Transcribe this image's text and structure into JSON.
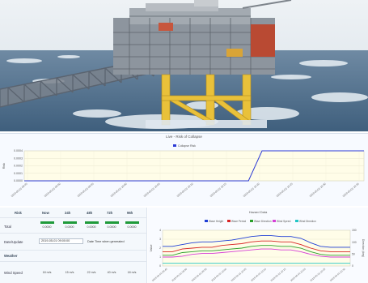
{
  "chart_data": [
    {
      "type": "line",
      "title": "Live - Risk of Collapse",
      "series": [
        {
          "name": "Collapse Risk",
          "color": "#2d3bd6",
          "x": [
            0,
            6.6,
            7.0,
            10
          ],
          "values": [
            0,
            0,
            0.0004,
            0.0004
          ]
        }
      ],
      "y_ticks": [
        "0.0004",
        "0.0003",
        "0.0002",
        "0.0001",
        "0.0000"
      ],
      "ylim": [
        0,
        0.0004
      ],
      "ylabel": "Risk",
      "x_ticks": [
        "2019-05-01 09:45",
        "2019-05-01 09:50",
        "2019-05-01 09:55",
        "2019-05-01 10:00",
        "2019-05-01 10:05",
        "2019-05-01 10:10",
        "2019-05-01 10:15",
        "2019-05-01 10:20",
        "2019-05-01 10:25",
        "2019-05-01 10:30",
        "2019-05-01 10:35"
      ],
      "grid": true
    },
    {
      "type": "line",
      "title": "Hazard Data",
      "series": [
        {
          "name": "Wave Height",
          "color": "#1f3fd6",
          "values": [
            2.2,
            2.2,
            2.4,
            2.6,
            2.7,
            2.7,
            2.8,
            2.9,
            3.1,
            3.3,
            3.4,
            3.4,
            3.3,
            3.3,
            3.1,
            2.6,
            2.2,
            2.1,
            2.1,
            2.1
          ]
        },
        {
          "name": "Wave Period",
          "color": "#d82424",
          "values": [
            1.6,
            1.6,
            1.9,
            2.0,
            2.1,
            2.1,
            2.3,
            2.4,
            2.5,
            2.7,
            2.8,
            2.8,
            2.7,
            2.7,
            2.4,
            2.0,
            1.7,
            1.6,
            1.6,
            1.6
          ]
        },
        {
          "name": "Wave Direction",
          "color": "#2aa02a",
          "values": [
            1.2,
            1.2,
            1.5,
            1.6,
            1.7,
            1.7,
            1.8,
            1.9,
            2.0,
            2.2,
            2.3,
            2.3,
            2.2,
            2.2,
            2.0,
            1.6,
            1.3,
            1.2,
            1.2,
            1.2
          ]
        },
        {
          "name": "Wind Speed",
          "color": "#d63fd6",
          "values": [
            1.0,
            1.0,
            1.1,
            1.3,
            1.4,
            1.4,
            1.5,
            1.6,
            1.7,
            1.8,
            1.9,
            1.9,
            1.8,
            1.8,
            1.6,
            1.3,
            1.1,
            1.0,
            1.0,
            1.0
          ]
        },
        {
          "name": "Wind Direction",
          "color": "#22c6c6",
          "values": [
            0.3,
            0.3,
            0.3,
            0.3,
            0.3,
            0.3,
            0.3,
            0.3,
            0.3,
            0.3,
            0.3,
            0.3,
            0.3,
            0.3,
            0.3,
            0.3,
            0.3,
            0.3,
            0.3,
            0.3
          ]
        }
      ],
      "y_ticks": [
        "4",
        "3",
        "2",
        "1",
        "0"
      ],
      "ylim": [
        0,
        4
      ],
      "y2_ticks": [
        "150",
        "100",
        "50",
        "0"
      ],
      "ylabel": "Value",
      "y2label": "Direction (deg)",
      "x_ticks": [
        "2019-05-01 09:45",
        "2019-05-01 09:50",
        "2019-05-01 09:55",
        "2019-05-01 10:00",
        "2019-05-01 10:05",
        "2019-05-01 10:10",
        "2019-05-01 10:15",
        "2019-05-01 10:20",
        "2019-05-01 10:25",
        "2019-05-01 10:30"
      ],
      "grid": true
    }
  ],
  "risk_table": {
    "headers": [
      "Risk",
      "Now",
      "24h",
      "48h",
      "72h",
      "96h"
    ],
    "total_label": "Total",
    "total_values": [
      "0.0000",
      "0.0000",
      "0.0000",
      "0.0000",
      "0.0000"
    ],
    "date_label": "Date/Update",
    "date_value": "2019-05-01 09:00:00",
    "date_note": "Date Time when generated",
    "weather_label": "Weather",
    "wind_label": "Wind Speed",
    "wind_values": [
      "18 m/s",
      "15 m/s",
      "22 m/s",
      "40 m/s",
      "18 m/s"
    ]
  },
  "colors": {
    "bar_green": "#1f9a3a",
    "sea": "#5a7f9f",
    "sky": "#e3ebf1",
    "rig_yellow": "#e9c13a"
  }
}
